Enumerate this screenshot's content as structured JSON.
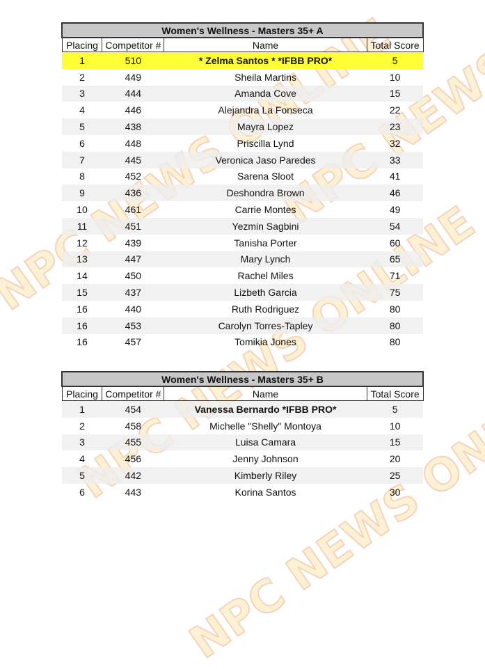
{
  "watermark": "NPC NEWS ONLINE",
  "columns": [
    "Placing",
    "Competitor #",
    "Name",
    "Total Score"
  ],
  "tables": [
    {
      "title": "Women's Wellness - Masters 35+ A",
      "highlight_color": "#ffff33",
      "rows": [
        [
          "1",
          "510",
          "* Zelma Santos * *IFBB PRO*",
          "5"
        ],
        [
          "2",
          "449",
          "Sheila Martins",
          "10"
        ],
        [
          "3",
          "444",
          "Amanda Cove",
          "15"
        ],
        [
          "4",
          "446",
          "Alejandra La Fonseca",
          "22"
        ],
        [
          "5",
          "438",
          "Mayra Lopez",
          "23"
        ],
        [
          "6",
          "448",
          "Priscilla Lynd",
          "32"
        ],
        [
          "7",
          "445",
          "Veronica Jaso Paredes",
          "33"
        ],
        [
          "8",
          "452",
          "Sarena Sloot",
          "41"
        ],
        [
          "9",
          "436",
          "Deshondra Brown",
          "46"
        ],
        [
          "10",
          "461",
          "Carrie Montes",
          "49"
        ],
        [
          "11",
          "451",
          "Yezmin Sagbini",
          "54"
        ],
        [
          "12",
          "439",
          "Tanisha Porter",
          "60"
        ],
        [
          "13",
          "447",
          "Mary Lynch",
          "65"
        ],
        [
          "14",
          "450",
          "Rachel Miles",
          "71"
        ],
        [
          "15",
          "437",
          "Lizbeth Garcia",
          "75"
        ],
        [
          "16",
          "440",
          "Ruth Rodriguez",
          "80"
        ],
        [
          "16",
          "453",
          "Carolyn Torres-Tapley",
          "80"
        ],
        [
          "16",
          "457",
          "Tomikia Jones",
          "80"
        ]
      ]
    },
    {
      "title": "Women's Wellness - Masters 35+ B",
      "rows": [
        [
          "1",
          "454",
          "Vanessa Bernardo *IFBB PRO*",
          "5"
        ],
        [
          "2",
          "458",
          "Michelle \"Shelly\" Montoya",
          "10"
        ],
        [
          "3",
          "455",
          "Luisa Camara",
          "15"
        ],
        [
          "4",
          "456",
          "Jenny Johnson",
          "20"
        ],
        [
          "5",
          "442",
          "Kimberly Riley",
          "25"
        ],
        [
          "6",
          "443",
          "Korina Santos",
          "30"
        ]
      ]
    }
  ]
}
